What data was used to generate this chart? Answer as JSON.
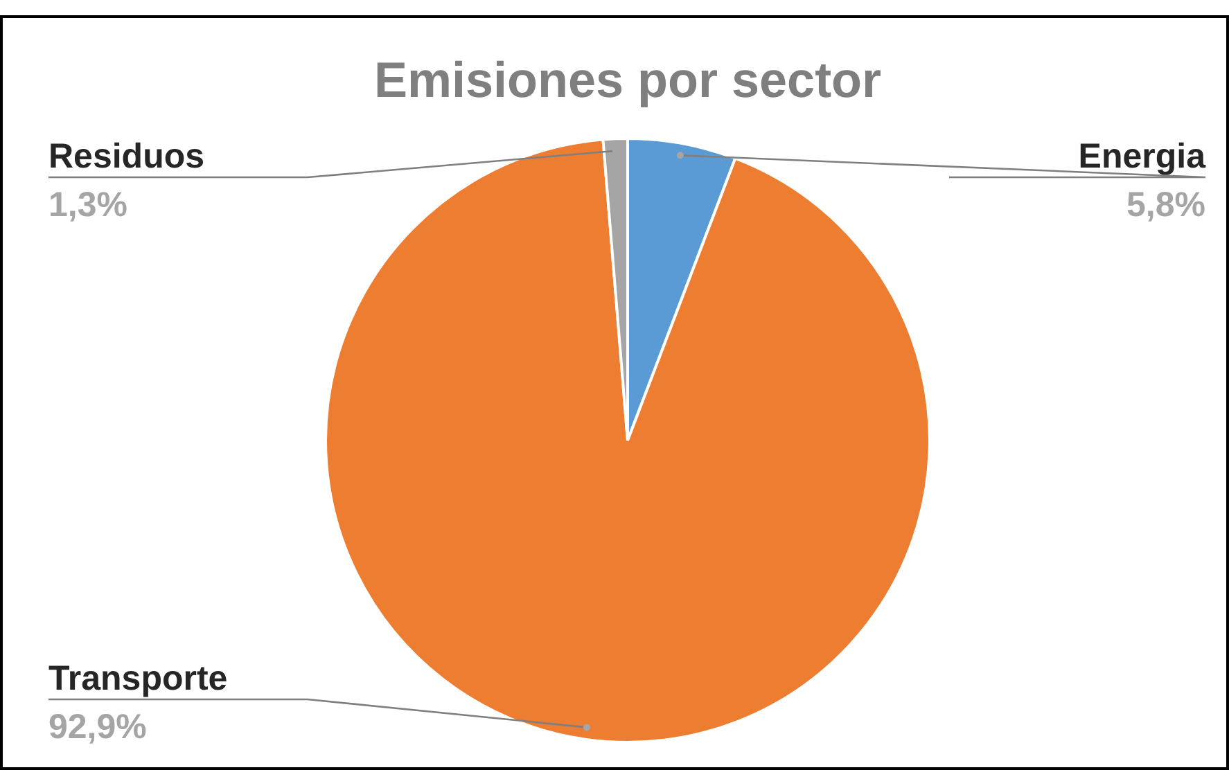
{
  "chart_data": {
    "type": "pie",
    "title": "Emisiones por sector",
    "categories": [
      "Energia",
      "Transporte",
      "Residuos"
    ],
    "values": [
      5.8,
      92.9,
      1.3
    ],
    "value_labels": [
      "5,8%",
      "92,9%",
      "1,3%"
    ],
    "colors": [
      "#5b9bd5",
      "#ed7d31",
      "#a5a5a5"
    ],
    "legend": false
  }
}
